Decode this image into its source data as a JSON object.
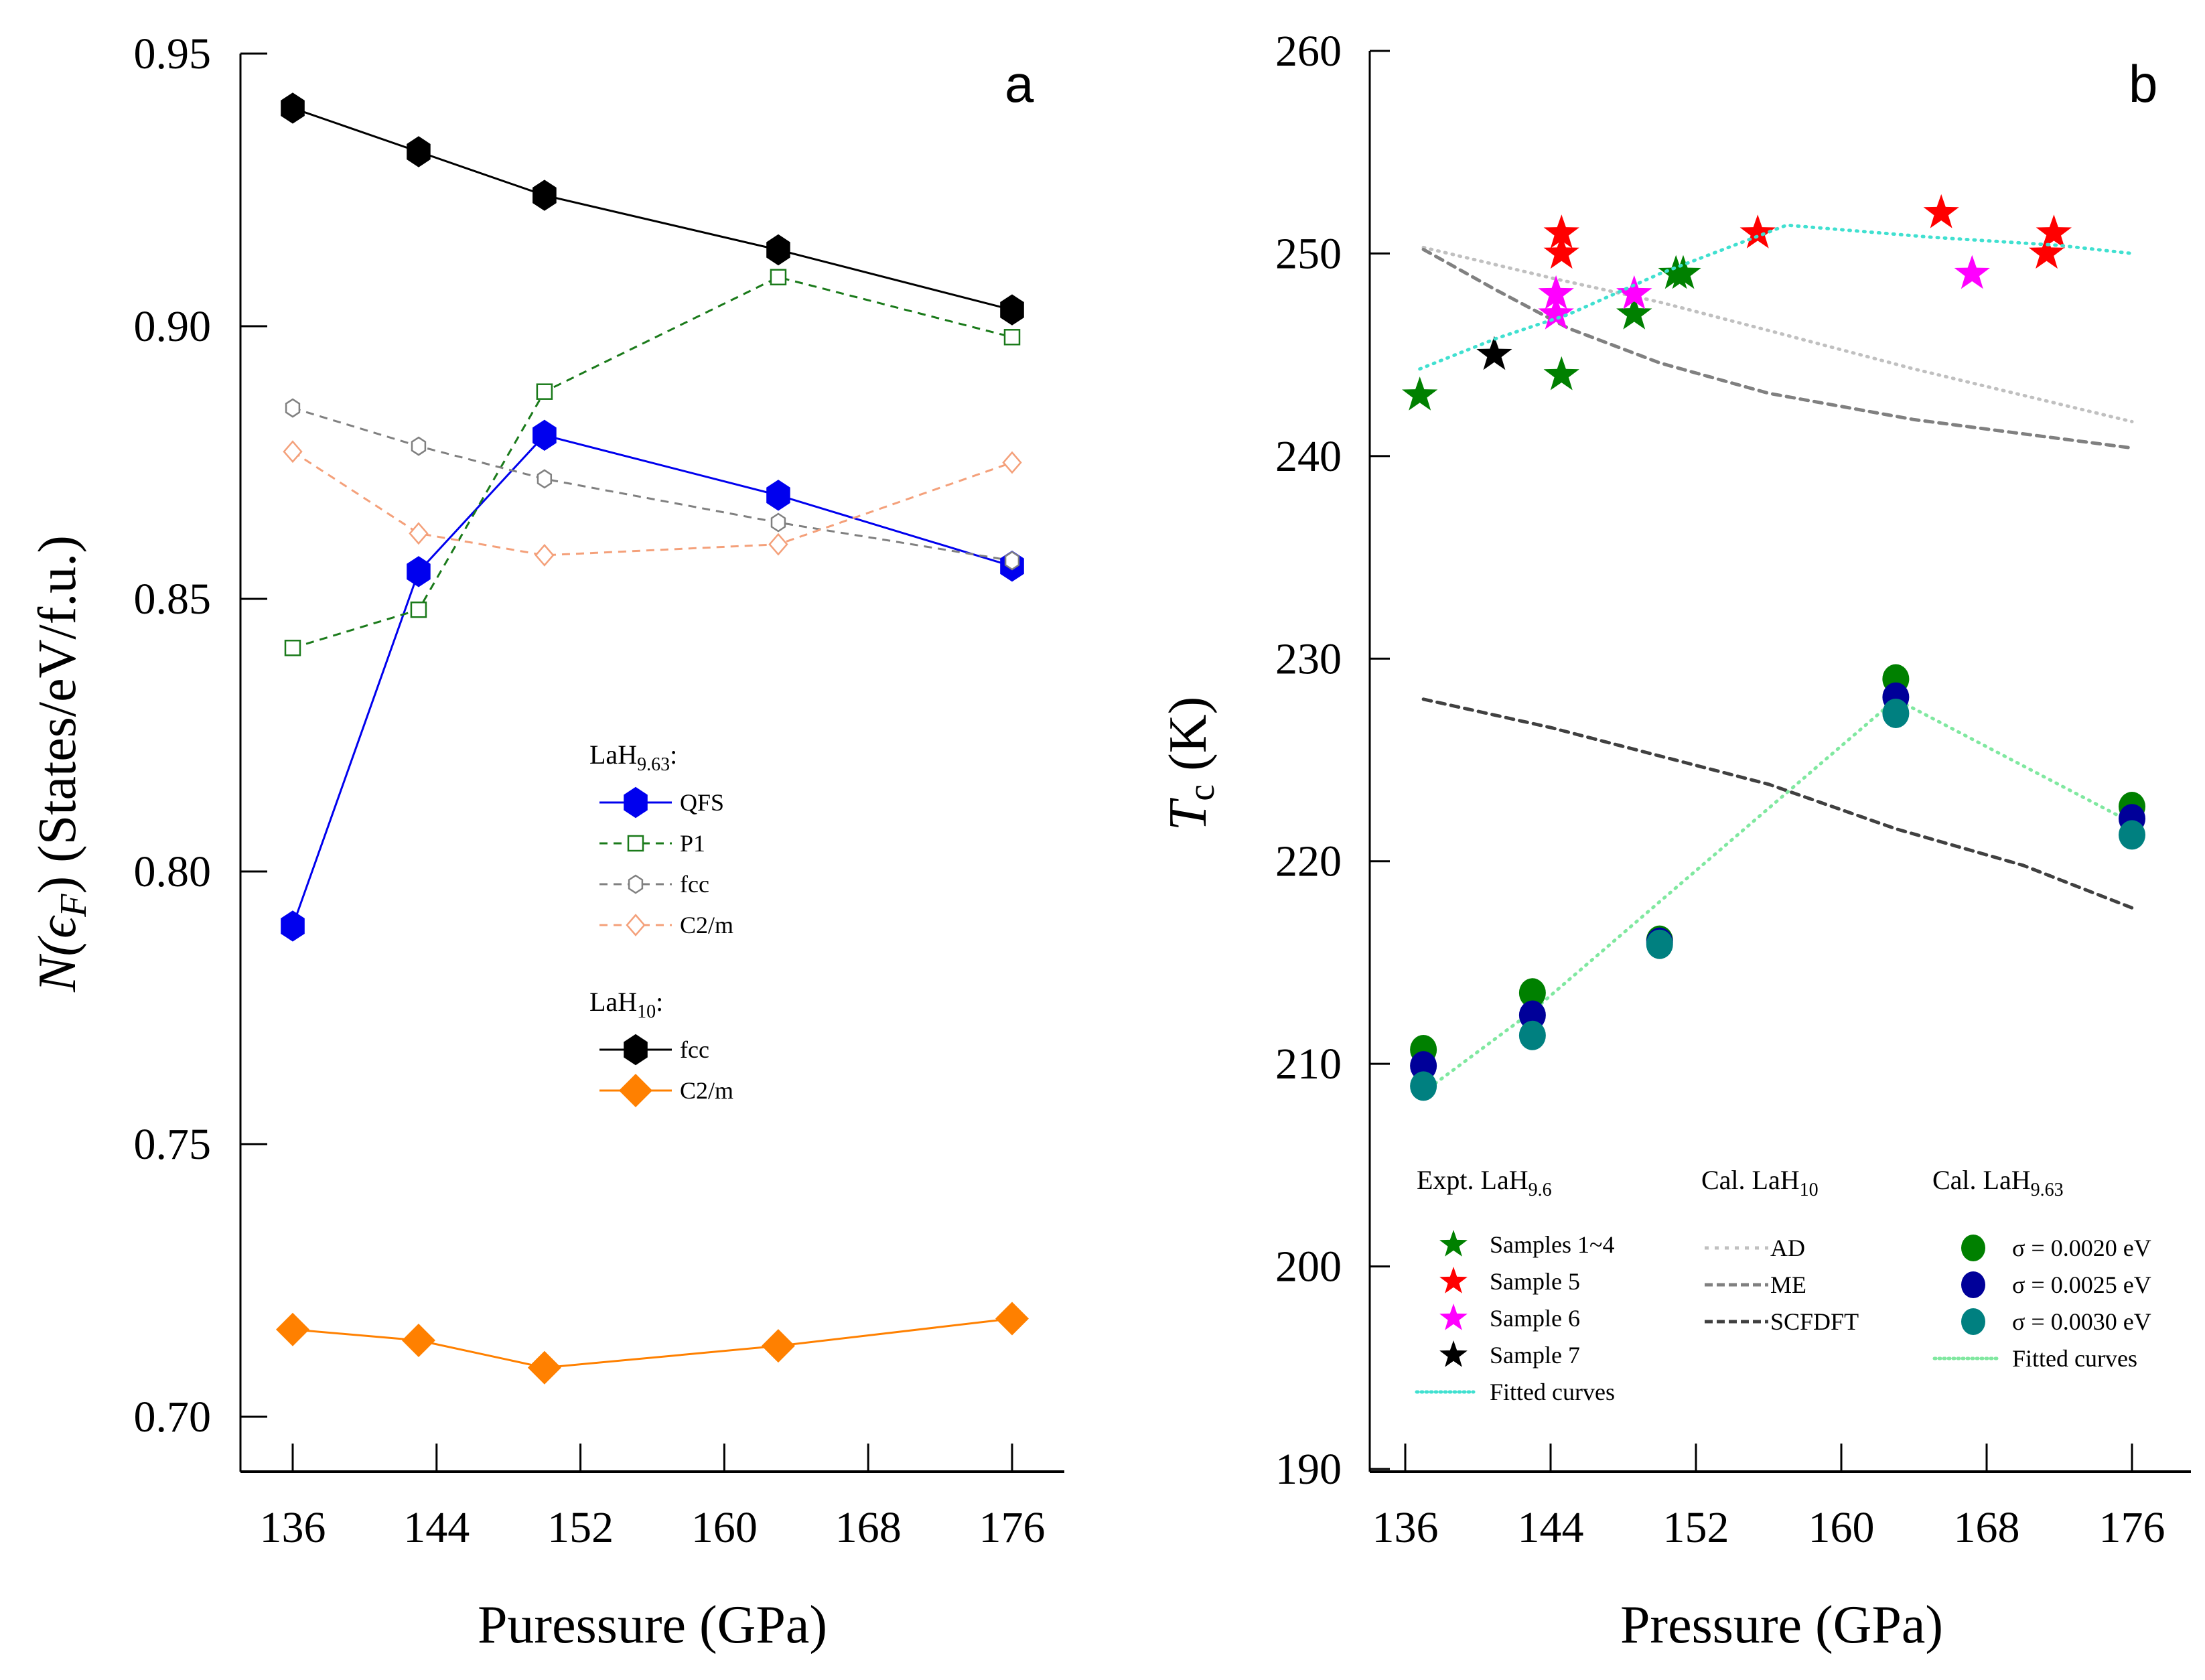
{
  "figure": {
    "panels": [
      "a",
      "b"
    ]
  },
  "chart_data": [
    {
      "panel": "a",
      "type": "line",
      "title": "",
      "panel_label": "a",
      "xlabel": "Puressure (GPa)",
      "ylabel": "N(ϵF) (States/eV/f.u.)",
      "ylabel_parts": {
        "main": "N(ϵ",
        "sub": "F",
        "rest": ") (States/eV/f.u.)"
      },
      "xlim": [
        134,
        180
      ],
      "ylim": [
        0.69,
        0.95
      ],
      "xticks": [
        136,
        144,
        152,
        160,
        168,
        176
      ],
      "xtick_labels": [
        "136",
        "144",
        "152",
        "160",
        "168",
        "176"
      ],
      "yticks": [
        0.7,
        0.75,
        0.8,
        0.85,
        0.9,
        0.95
      ],
      "ytick_labels": [
        "0.70",
        "0.75",
        "0.80",
        "0.85",
        "0.90",
        "0.95"
      ],
      "grid": false,
      "legend_position": "center-right",
      "x": [
        136,
        143,
        150,
        163,
        176
      ],
      "legend_groups": [
        {
          "heading": "LaH",
          "heading_sub": "9.63",
          "heading_suffix": ":",
          "entries": [
            "QFS",
            "P1",
            "fcc",
            "C2/m"
          ]
        },
        {
          "heading": "LaH",
          "heading_sub": "10",
          "heading_suffix": ":",
          "entries": [
            "fcc",
            "C2/m"
          ]
        }
      ],
      "series": [
        {
          "name": "QFS",
          "group": "LaH9.63",
          "marker": "hexagon-filled",
          "line": "solid",
          "color": "#0000ee",
          "values": [
            0.79,
            0.855,
            0.88,
            0.869,
            0.856
          ]
        },
        {
          "name": "P1",
          "group": "LaH9.63",
          "marker": "square-open",
          "line": "dashed",
          "color": "#1a7a1a",
          "values": [
            0.841,
            0.848,
            0.888,
            0.909,
            0.898
          ]
        },
        {
          "name": "fcc",
          "group": "LaH9.63",
          "marker": "hexagon-open",
          "line": "dashed",
          "color": "#808080",
          "values": [
            0.885,
            0.878,
            0.872,
            0.864,
            0.857
          ]
        },
        {
          "name": "C2/m",
          "group": "LaH9.63",
          "marker": "diamond-open",
          "line": "dashed",
          "color": "#f4a07a",
          "values": [
            0.877,
            0.862,
            0.858,
            0.86,
            0.875
          ]
        },
        {
          "name": "fcc",
          "group": "LaH10",
          "marker": "hexagon-filled",
          "line": "solid",
          "color": "#000000",
          "values": [
            0.94,
            0.932,
            0.924,
            0.914,
            0.903
          ]
        },
        {
          "name": "C2/m",
          "group": "LaH10",
          "marker": "diamond-filled",
          "line": "solid",
          "color": "#ff8000",
          "values": [
            0.716,
            0.714,
            0.709,
            0.713,
            0.718
          ]
        }
      ]
    },
    {
      "panel": "b",
      "type": "scatter",
      "title": "",
      "panel_label": "b",
      "xlabel": "Pressure (GPa)",
      "ylabel": "Tc (K)",
      "ylabel_parts": {
        "main": "T",
        "sub": "c",
        "rest": " (K)"
      },
      "xlim": [
        134,
        180
      ],
      "ylim": [
        190,
        260
      ],
      "xticks": [
        136,
        144,
        152,
        160,
        168,
        176
      ],
      "xtick_labels": [
        "136",
        "144",
        "152",
        "160",
        "168",
        "176"
      ],
      "yticks": [
        190,
        200,
        210,
        220,
        230,
        240,
        250,
        260
      ],
      "ytick_labels": [
        "190",
        "200",
        "210",
        "220",
        "230",
        "240",
        "250",
        "260"
      ],
      "grid": false,
      "legend_position": "bottom",
      "legend_columns": [
        {
          "heading": "Expt.  LaH",
          "heading_sub": "9.6",
          "entries": [
            "Samples 1~4",
            "Sample 5",
            "Sample 6",
            "Sample 7",
            "Fitted curves"
          ]
        },
        {
          "heading": "Cal. LaH",
          "heading_sub": "10",
          "entries": [
            "AD",
            "ME",
            "SCFDFT"
          ]
        },
        {
          "heading": "Cal.  LaH",
          "heading_sub": "9.63",
          "entries": [
            "σ = 0.0020 eV",
            "σ = 0.0025 eV",
            "σ = 0.0030 eV",
            "Fitted curves"
          ]
        }
      ],
      "expt_series": [
        {
          "name": "Samples 1~4",
          "marker": "star",
          "color": "#008000",
          "points": [
            [
              136.8,
              243.0
            ],
            [
              144.6,
              244.0
            ],
            [
              148.6,
              247.0
            ],
            [
              150.9,
              249.0
            ],
            [
              151.3,
              249.0
            ]
          ]
        },
        {
          "name": "Sample 5",
          "marker": "star",
          "color": "#ff0000",
          "points": [
            [
              144.6,
              251.0
            ],
            [
              144.6,
              250.0
            ],
            [
              155.4,
              251.0
            ],
            [
              165.5,
              252.0
            ],
            [
              171.7,
              251.0
            ],
            [
              171.3,
              250.0
            ]
          ]
        },
        {
          "name": "Sample 6",
          "marker": "star",
          "color": "#ff00ff",
          "points": [
            [
              144.3,
              248.0
            ],
            [
              144.3,
              247.0
            ],
            [
              148.6,
              248.0
            ],
            [
              167.2,
              249.0
            ]
          ]
        },
        {
          "name": "Sample 7",
          "marker": "star",
          "color": "#000000",
          "points": [
            [
              140.9,
              245.0
            ]
          ]
        }
      ],
      "expt_fit": {
        "name": "Fitted curves",
        "line": "dotted",
        "color": "#40e0d0",
        "points": [
          [
            136.8,
            244.3
          ],
          [
            141,
            245.8
          ],
          [
            145,
            247.0
          ],
          [
            150,
            249.0
          ],
          [
            157,
            251.4
          ],
          [
            165,
            250.8
          ],
          [
            172,
            250.4
          ],
          [
            176,
            250.0
          ]
        ]
      },
      "lah10_curves": [
        {
          "name": "AD",
          "line": "dotted",
          "color": "#c0c0c0",
          "points": [
            [
              137,
              250.3
            ],
            [
              144,
              248.8
            ],
            [
              150,
              247.6
            ],
            [
              156,
              246.2
            ],
            [
              164,
              244.3
            ],
            [
              170,
              243.0
            ],
            [
              176,
              241.7
            ]
          ]
        },
        {
          "name": "ME",
          "line": "dashed",
          "color": "#808080",
          "points": [
            [
              137,
              250.2
            ],
            [
              141,
              248.2
            ],
            [
              145,
              246.3
            ],
            [
              150,
              244.6
            ],
            [
              156,
              243.1
            ],
            [
              164,
              241.8
            ],
            [
              170,
              241.1
            ],
            [
              176,
              240.4
            ]
          ]
        },
        {
          "name": "SCFDFT",
          "line": "dashed",
          "color": "#404040",
          "points": [
            [
              137,
              228.0
            ],
            [
              144,
              226.6
            ],
            [
              150,
              225.2
            ],
            [
              156,
              223.8
            ],
            [
              163,
              221.6
            ],
            [
              170,
              219.8
            ],
            [
              176,
              217.7
            ]
          ]
        }
      ],
      "cal_series": [
        {
          "name": "σ = 0.0020 eV",
          "marker": "circle",
          "color": "#008000",
          "points": [
            [
              137,
              210.7
            ],
            [
              143,
              213.5
            ],
            [
              150,
              216.1
            ],
            [
              163,
              229.0
            ],
            [
              176,
              222.7
            ]
          ]
        },
        {
          "name": "σ = 0.0025 eV",
          "marker": "circle",
          "color": "#000099",
          "points": [
            [
              137,
              209.9
            ],
            [
              143,
              212.4
            ],
            [
              150,
              216.0
            ],
            [
              163,
              228.1
            ],
            [
              176,
              222.1
            ]
          ]
        },
        {
          "name": "σ = 0.0030 eV",
          "marker": "circle",
          "color": "#008080",
          "points": [
            [
              137,
              208.9
            ],
            [
              143,
              211.4
            ],
            [
              150,
              215.9
            ],
            [
              163,
              227.3
            ],
            [
              176,
              221.3
            ]
          ]
        }
      ],
      "cal_fit": {
        "name": "Fitted curves",
        "line": "dotted",
        "color": "#80e8a0",
        "points": [
          [
            137,
            208.6
          ],
          [
            143,
            212.6
          ],
          [
            150,
            218.0
          ],
          [
            163,
            228.0
          ],
          [
            176,
            221.9
          ]
        ]
      }
    }
  ]
}
